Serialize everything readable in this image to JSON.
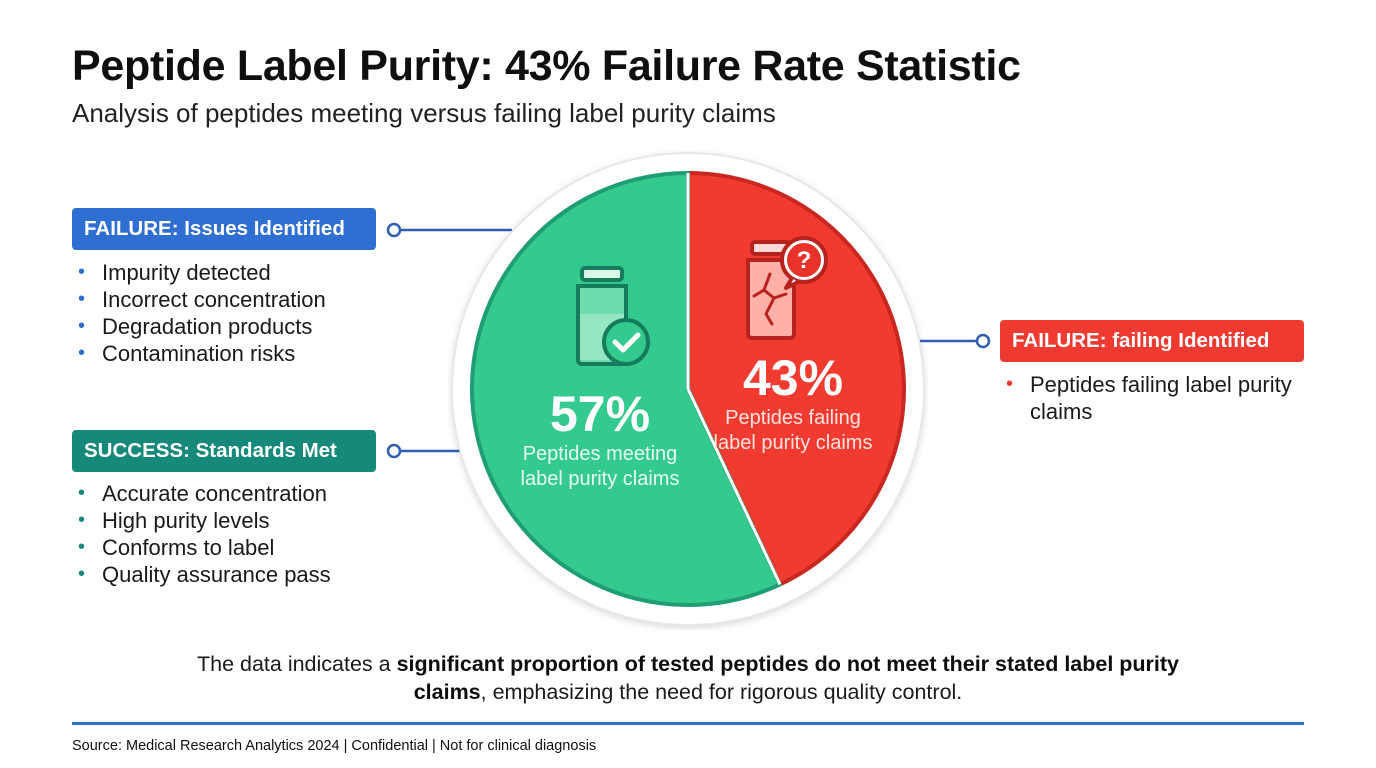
{
  "title": "Peptide Label Purity: 43% Failure Rate Statistic",
  "subtitle": "Analysis of peptides meeting versus failing label purity claims",
  "colors": {
    "success": "#34c98e",
    "success_dark": "#1f9e73",
    "failure": "#f23b30",
    "failure_dark": "#c9271f",
    "badge_blue": "#2f6fd2",
    "badge_teal": "#16897a",
    "badge_red": "#ee3a30",
    "accent_line": "#2f6fc4"
  },
  "left_failure": {
    "badge": "FAILURE: Issues Identified",
    "items": [
      "Impurity detected",
      "Incorrect concentration",
      "Degradation products",
      "Contamination risks"
    ]
  },
  "left_success": {
    "badge": "SUCCESS: Standards Met",
    "items": [
      "Accurate concentration",
      "High purity levels",
      "Conforms to label",
      "Quality assurance pass"
    ]
  },
  "right_failure": {
    "badge": "FAILURE: failing Identified",
    "items": [
      "Peptides failing label purity claims"
    ]
  },
  "chart_data": {
    "type": "pie",
    "slices": [
      {
        "label": "Peptides meeting label purity claims",
        "value": 57,
        "value_label": "57%",
        "color": "#34c98e",
        "icon": "vial-check-icon"
      },
      {
        "label": "Peptides failing label purity claims",
        "value": 43,
        "value_label": "43%",
        "color": "#f23b30",
        "icon": "cracked-vial-question-icon"
      }
    ]
  },
  "note": {
    "part1": "The data indicates a ",
    "bold": "significant proportion of tested peptides do not meet their stated label purity claims",
    "part2": ", emphasizing the need for rigorous quality control."
  },
  "footer": "Source: Medical Research Analytics 2024 | Confidential | Not for clinical diagnosis"
}
